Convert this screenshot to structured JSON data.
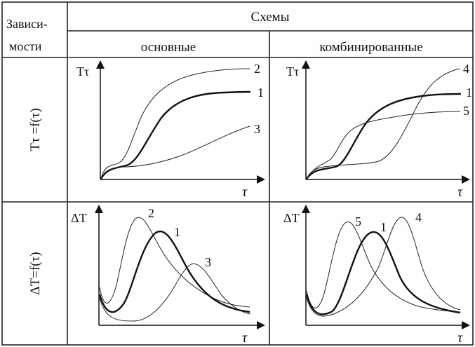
{
  "table": {
    "header_left_line1": "Зависи-",
    "header_left_line2": "мости",
    "header_schemes": "Схемы",
    "col_basic": "основные",
    "col_combined": "комбинированные",
    "row1_label": "Tτ =f(τ)",
    "row2_label": "ΔT=f(τ)"
  },
  "panels": {
    "tl": {
      "ylabel": "Tτ",
      "xlabel": "τ",
      "curve_labels": [
        "2",
        "1",
        "3"
      ]
    },
    "tr": {
      "ylabel": "Tτ",
      "xlabel": "τ",
      "curve_labels": [
        "4",
        "1",
        "5"
      ]
    },
    "bl": {
      "ylabel": "ΔT",
      "xlabel": "τ",
      "curve_labels": [
        "2",
        "1",
        "3"
      ]
    },
    "br": {
      "ylabel": "ΔT",
      "xlabel": "τ",
      "curve_labels": [
        "5",
        "1",
        "4"
      ]
    }
  }
}
